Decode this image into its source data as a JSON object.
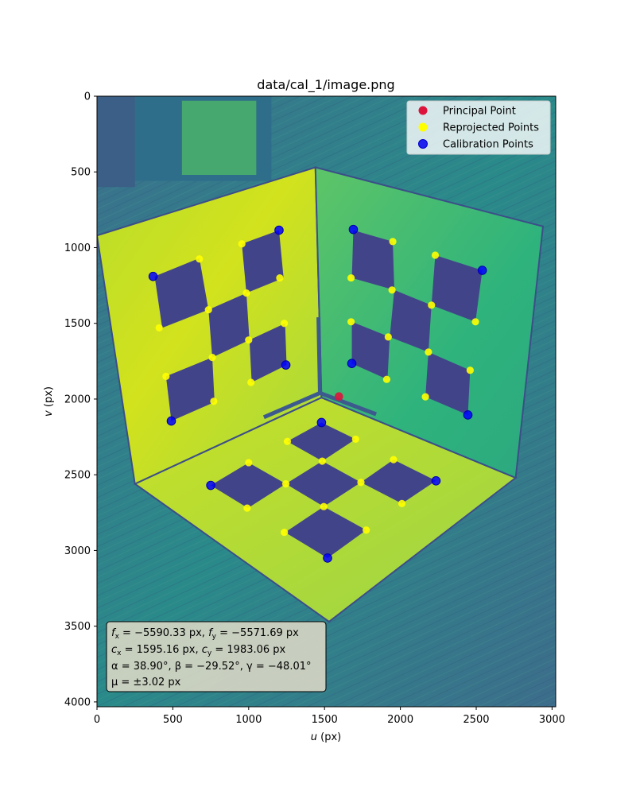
{
  "chart_data": {
    "type": "scatter",
    "title": "data/cal_1/image.png",
    "xlabel_var": "u",
    "xlabel_unit": " (px)",
    "ylabel_var": "v",
    "ylabel_unit": " (px)",
    "xlim": [
      0,
      3024
    ],
    "ylim": [
      4032,
      0
    ],
    "y_axis_inverted": true,
    "xticks": [
      0,
      500,
      1000,
      1500,
      2000,
      2500,
      3000
    ],
    "yticks": [
      0,
      500,
      1000,
      1500,
      2000,
      2500,
      3000,
      3500,
      4000
    ],
    "background_image": "viridis-rendered calibration photo: three-plane corner target with checkerboard squares",
    "legend_position": "top-right",
    "series": [
      {
        "name": "Principal Point",
        "color": "#dc143c",
        "points": [
          [
            1595,
            1983
          ]
        ]
      },
      {
        "name": "Reprojected Points",
        "color": "#ffff00",
        "points": [
          [
            675,
            1075
          ],
          [
            955,
            975
          ],
          [
            1205,
            1200
          ],
          [
            410,
            1530
          ],
          [
            735,
            1410
          ],
          [
            985,
            1300
          ],
          [
            1235,
            1500
          ],
          [
            455,
            1850
          ],
          [
            770,
            2015
          ],
          [
            1000,
            1610
          ],
          [
            1015,
            1890
          ],
          [
            760,
            1725
          ],
          [
            1675,
            1200
          ],
          [
            1950,
            960
          ],
          [
            2230,
            1050
          ],
          [
            1675,
            1490
          ],
          [
            1945,
            1280
          ],
          [
            2205,
            1380
          ],
          [
            1920,
            1590
          ],
          [
            2495,
            1490
          ],
          [
            1910,
            1870
          ],
          [
            2185,
            1690
          ],
          [
            2460,
            1810
          ],
          [
            2165,
            1985
          ],
          [
            1255,
            2280
          ],
          [
            1705,
            2265
          ],
          [
            1485,
            2410
          ],
          [
            1000,
            2420
          ],
          [
            1245,
            2560
          ],
          [
            1955,
            2400
          ],
          [
            1740,
            2550
          ],
          [
            990,
            2720
          ],
          [
            1495,
            2710
          ],
          [
            2010,
            2690
          ],
          [
            1235,
            2880
          ],
          [
            1775,
            2865
          ]
        ]
      },
      {
        "name": "Calibration Points",
        "color": "#0000ff",
        "points": [
          [
            370,
            1190
          ],
          [
            1200,
            885
          ],
          [
            1245,
            1775
          ],
          [
            490,
            2145
          ],
          [
            1690,
            880
          ],
          [
            2540,
            1150
          ],
          [
            1680,
            1765
          ],
          [
            2445,
            2105
          ],
          [
            1480,
            2155
          ],
          [
            750,
            2570
          ],
          [
            2235,
            2540
          ],
          [
            1520,
            3050
          ]
        ]
      }
    ],
    "annotation": {
      "line1": "= −5590.33 px,",
      "line1b": "= −5571.69 px",
      "line2": "= 1595.16 px,",
      "line2b": "= 1983.06 px",
      "line3": "α = 38.90°, β = −29.52°, γ = −48.01°",
      "line4": "μ = ±3.02 px"
    }
  }
}
